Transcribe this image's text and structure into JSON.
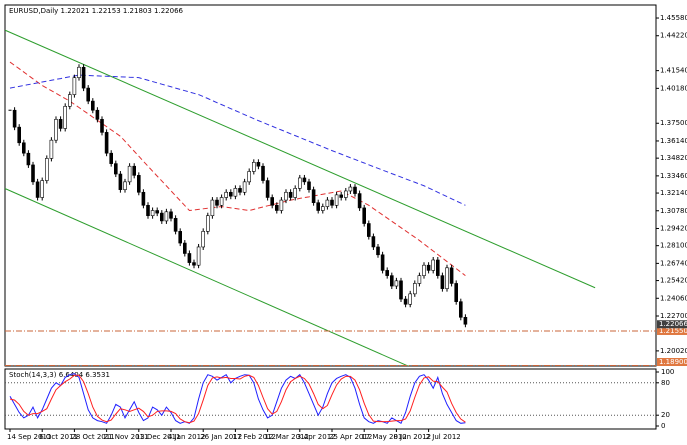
{
  "chart_data": [
    {
      "type": "candlestick",
      "title": "EURUSD,Daily  1.22021 1.22153 1.21803 1.22066",
      "ylim": [
        1.1886,
        1.4658
      ],
      "yticks": [
        {
          "value": 1.4558,
          "label": "1.45580"
        },
        {
          "value": 1.4422,
          "label": "1.44220"
        },
        {
          "value": 1.4154,
          "label": "1.41540"
        },
        {
          "value": 1.4018,
          "label": "1.40180"
        },
        {
          "value": 1.375,
          "label": "1.37500"
        },
        {
          "value": 1.3614,
          "label": "1.36140"
        },
        {
          "value": 1.3482,
          "label": "1.34820"
        },
        {
          "value": 1.3346,
          "label": "1.33460"
        },
        {
          "value": 1.3214,
          "label": "1.32140"
        },
        {
          "value": 1.3078,
          "label": "1.30780"
        },
        {
          "value": 1.2942,
          "label": "1.29420"
        },
        {
          "value": 1.281,
          "label": "1.28100"
        },
        {
          "value": 1.2674,
          "label": "1.26740"
        },
        {
          "value": 1.2542,
          "label": "1.25420"
        },
        {
          "value": 1.2406,
          "label": "1.24060"
        },
        {
          "value": 1.227,
          "label": "1.22700"
        },
        {
          "value": 1.2002,
          "label": "1.20020"
        }
      ],
      "xticks": [
        {
          "value": 0,
          "label": "14 Sep 2011"
        },
        {
          "value": 7,
          "label": "6 Oct 2011"
        },
        {
          "value": 14,
          "label": "28 Oct 2011"
        },
        {
          "value": 21,
          "label": "21 Nov 2011"
        },
        {
          "value": 28,
          "label": "13 Dec 2011"
        },
        {
          "value": 35,
          "label": "4 Jan 2012"
        },
        {
          "value": 42,
          "label": "26 Jan 2012"
        },
        {
          "value": 49,
          "label": "17 Feb 2012"
        },
        {
          "value": 56,
          "label": "12 Mar 2012"
        },
        {
          "value": 63,
          "label": "3 Apr 2012"
        },
        {
          "value": 70,
          "label": "25 Apr 2012"
        },
        {
          "value": 77,
          "label": "17 May 2012"
        },
        {
          "value": 84,
          "label": "8 Jun 2012"
        },
        {
          "value": 91,
          "label": "2 Jul 2012"
        }
      ],
      "close": [
        1.385,
        1.372,
        1.36,
        1.352,
        1.343,
        1.33,
        1.318,
        1.331,
        1.348,
        1.362,
        1.378,
        1.371,
        1.388,
        1.397,
        1.41,
        1.418,
        1.402,
        1.392,
        1.385,
        1.378,
        1.368,
        1.352,
        1.344,
        1.336,
        1.324,
        1.33,
        1.342,
        1.335,
        1.322,
        1.312,
        1.304,
        1.308,
        1.306,
        1.3,
        1.307,
        1.302,
        1.292,
        1.283,
        1.275,
        1.268,
        1.266,
        1.28,
        1.292,
        1.304,
        1.316,
        1.312,
        1.318,
        1.322,
        1.319,
        1.325,
        1.322,
        1.33,
        1.338,
        1.345,
        1.342,
        1.331,
        1.318,
        1.312,
        1.308,
        1.316,
        1.322,
        1.318,
        1.325,
        1.333,
        1.33,
        1.324,
        1.314,
        1.308,
        1.311,
        1.316,
        1.312,
        1.32,
        1.318,
        1.323,
        1.326,
        1.321,
        1.31,
        1.298,
        1.288,
        1.28,
        1.274,
        1.262,
        1.258,
        1.25,
        1.254,
        1.24,
        1.236,
        1.244,
        1.252,
        1.258,
        1.266,
        1.262,
        1.27,
        1.258,
        1.248,
        1.264,
        1.252,
        1.238,
        1.226,
        1.22066
      ],
      "series": [
        {
          "color": "#e03030",
          "values": [
            1.422,
            1.4194,
            1.4169,
            1.4143,
            1.4117,
            1.4091,
            1.4066,
            1.404,
            1.402,
            1.4,
            1.398,
            1.396,
            1.394,
            1.392,
            1.3895,
            1.3871,
            1.3846,
            1.3822,
            1.3797,
            1.3773,
            1.3748,
            1.3724,
            1.3699,
            1.3675,
            1.365,
            1.3612,
            1.3573,
            1.3535,
            1.3497,
            1.3458,
            1.342,
            1.3382,
            1.3344,
            1.3307,
            1.3269,
            1.3231,
            1.3193,
            1.3156,
            1.3118,
            1.308,
            1.3084,
            1.3089,
            1.3093,
            1.3097,
            1.3101,
            1.3106,
            1.311,
            1.3105,
            1.31,
            1.3095,
            1.309,
            1.3085,
            1.308,
            1.3089,
            1.3098,
            1.3107,
            1.3116,
            1.3124,
            1.3133,
            1.3142,
            1.3151,
            1.316,
            1.3166,
            1.3173,
            1.3179,
            1.3185,
            1.3192,
            1.3198,
            1.3205,
            1.3211,
            1.3217,
            1.3224,
            1.323,
            1.3212,
            1.3193,
            1.3175,
            1.3157,
            1.3138,
            1.312,
            1.3095,
            1.3071,
            1.3046,
            1.3022,
            1.2997,
            1.2973,
            1.2948,
            1.2924,
            1.2899,
            1.2875,
            1.285,
            1.2823,
            1.2796,
            1.2769,
            1.2742,
            1.2715,
            1.2688,
            1.2661,
            1.2634,
            1.2607,
            1.258
          ]
        },
        {
          "color": "#3030e0",
          "values": [
            1.402,
            1.4027,
            1.4033,
            1.404,
            1.4047,
            1.4053,
            1.406,
            1.4067,
            1.4073,
            1.408,
            1.4087,
            1.4093,
            1.41,
            1.4107,
            1.4113,
            1.412,
            1.4118,
            1.4117,
            1.4115,
            1.4114,
            1.4112,
            1.4111,
            1.4109,
            1.4108,
            1.4106,
            1.4105,
            1.4103,
            1.4102,
            1.41,
            1.409,
            1.408,
            1.407,
            1.406,
            1.405,
            1.404,
            1.403,
            1.402,
            1.401,
            1.4,
            1.399,
            1.398,
            1.397,
            1.3955,
            1.394,
            1.3924,
            1.3908,
            1.3893,
            1.3878,
            1.3862,
            1.3847,
            1.3832,
            1.3816,
            1.3801,
            1.3785,
            1.377,
            1.3756,
            1.3741,
            1.3727,
            1.3712,
            1.3698,
            1.3684,
            1.3669,
            1.3655,
            1.3641,
            1.3626,
            1.3612,
            1.3597,
            1.3583,
            1.3569,
            1.3554,
            1.354,
            1.3526,
            1.3513,
            1.3499,
            1.3485,
            1.3472,
            1.3458,
            1.3445,
            1.3431,
            1.3417,
            1.3404,
            1.339,
            1.3377,
            1.3363,
            1.335,
            1.3337,
            1.3323,
            1.331,
            1.3297,
            1.3283,
            1.327,
            1.3253,
            1.3237,
            1.322,
            1.3203,
            1.3187,
            1.317,
            1.3153,
            1.3137,
            1.312
          ]
        }
      ],
      "trendlines": [
        {
          "color": "#2e9e2e",
          "x": [
            -1.1,
            127.2
          ],
          "values": [
            1.4465,
            1.2487
          ]
        },
        {
          "color": "#2e9e2e",
          "x": [
            -1.1,
            88
          ],
          "values": [
            1.3249,
            1.1863
          ]
        }
      ],
      "hlines": [
        {
          "value": 1.2155,
          "label": "1.21550"
        },
        {
          "value": 1.189,
          "label": "1.18900"
        }
      ],
      "price_label": {
        "value": 1.22066,
        "label": "1.22066"
      }
    },
    {
      "type": "line",
      "title": "Stoch(14,3,3) 6.6404 6.3531",
      "ylim": [
        0,
        100
      ],
      "yticks": [
        0,
        20,
        80,
        100
      ],
      "levels": [
        20,
        80
      ],
      "series": [
        {
          "color": "#2020ff",
          "values": [
            55,
            40,
            25,
            15,
            20,
            35,
            15,
            30,
            50,
            70,
            80,
            75,
            90,
            95,
            97,
            90,
            60,
            30,
            15,
            10,
            8,
            5,
            20,
            40,
            35,
            15,
            30,
            45,
            25,
            10,
            15,
            35,
            30,
            20,
            35,
            25,
            10,
            5,
            8,
            5,
            15,
            50,
            80,
            95,
            92,
            85,
            90,
            95,
            80,
            88,
            92,
            95,
            94,
            80,
            50,
            30,
            15,
            20,
            45,
            70,
            85,
            92,
            88,
            95,
            80,
            60,
            40,
            20,
            35,
            60,
            80,
            88,
            92,
            95,
            90,
            70,
            40,
            15,
            8,
            5,
            10,
            8,
            5,
            15,
            10,
            5,
            25,
            55,
            80,
            92,
            95,
            85,
            70,
            90,
            60,
            40,
            25,
            10,
            5,
            6
          ]
        },
        {
          "color": "#ff2020",
          "values": [
            50,
            48,
            40,
            27,
            20,
            23,
            23,
            27,
            32,
            50,
            67,
            75,
            82,
            87,
            94,
            94,
            82,
            60,
            35,
            18,
            11,
            8,
            11,
            22,
            32,
            30,
            27,
            30,
            33,
            27,
            17,
            20,
            27,
            28,
            28,
            27,
            23,
            13,
            8,
            6,
            9,
            23,
            48,
            75,
            89,
            91,
            89,
            90,
            88,
            88,
            87,
            92,
            94,
            90,
            75,
            53,
            32,
            22,
            27,
            45,
            67,
            82,
            88,
            92,
            88,
            78,
            60,
            40,
            32,
            38,
            58,
            76,
            87,
            92,
            92,
            85,
            67,
            42,
            21,
            9,
            8,
            8,
            8,
            9,
            10,
            10,
            13,
            28,
            53,
            76,
            89,
            91,
            83,
            82,
            72,
            63,
            42,
            25,
            13,
            7
          ]
        }
      ]
    }
  ]
}
